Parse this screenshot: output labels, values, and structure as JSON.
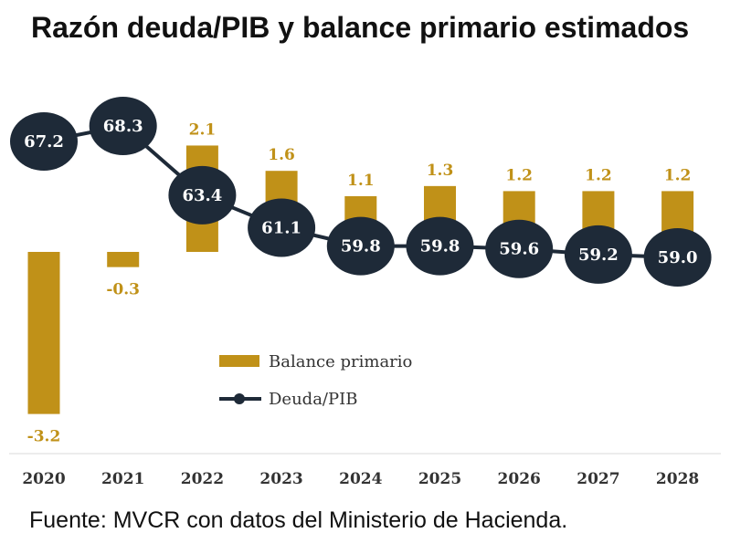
{
  "title": "Razón deuda/PIB y balance primario estimados",
  "source": "Fuente: MVCR con datos del Ministerio de Hacienda.",
  "colors": {
    "bar": "#c09118",
    "bar_label": "#c09118",
    "line": "#1e2a38",
    "marker": "#1e2a38",
    "marker_text": "#ffffff"
  },
  "chart_data": {
    "type": "bar+line",
    "categories": [
      "2020",
      "2021",
      "2022",
      "2023",
      "2024",
      "2025",
      "2026",
      "2027",
      "2028"
    ],
    "series": [
      {
        "name": "Balance primario",
        "type": "bar",
        "values": [
          -3.2,
          -0.3,
          2.1,
          1.6,
          1.1,
          1.3,
          1.2,
          1.2,
          1.2
        ]
      },
      {
        "name": "Deuda/PIB",
        "type": "line",
        "values": [
          67.2,
          68.3,
          63.4,
          61.1,
          59.8,
          59.8,
          59.6,
          59.2,
          59.0
        ]
      }
    ],
    "legend": "center",
    "grid": false
  }
}
